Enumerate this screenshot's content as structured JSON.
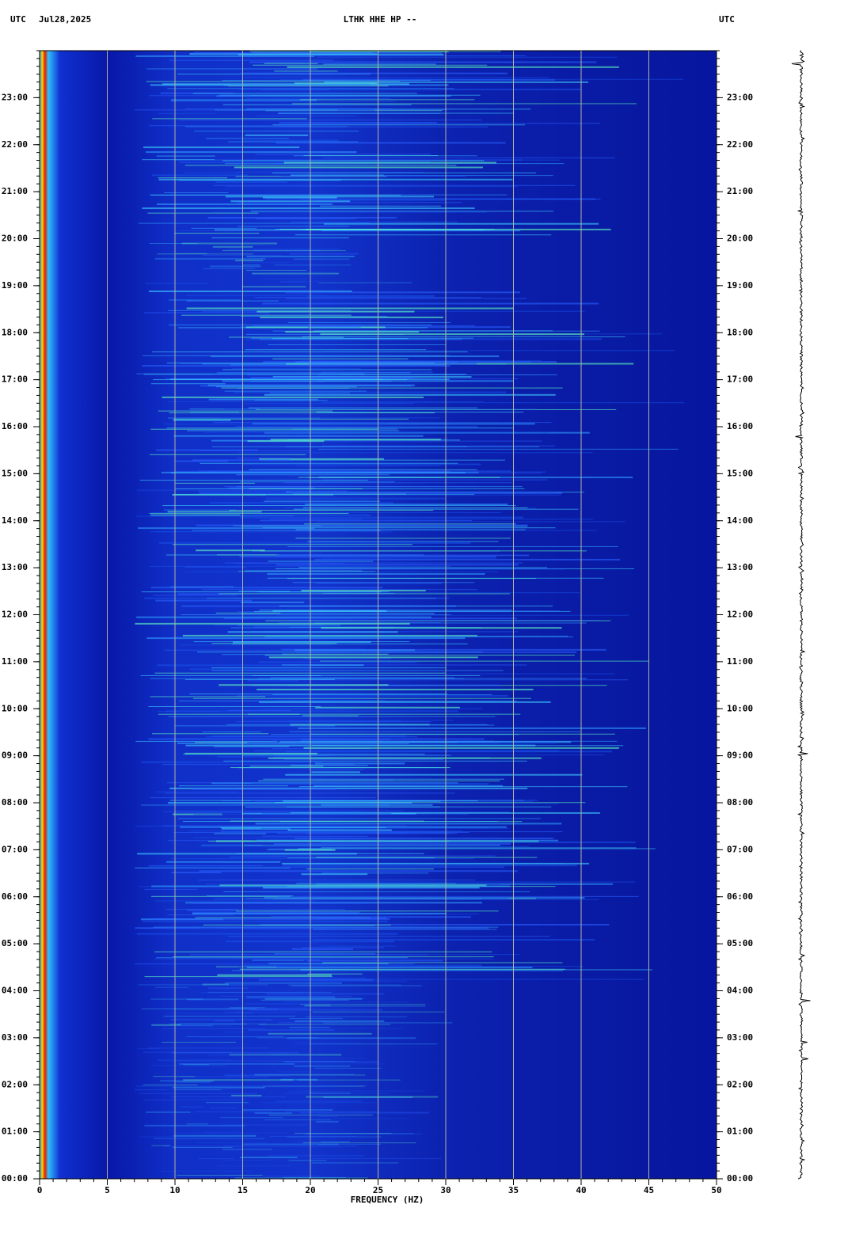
{
  "chart_data": {
    "type": "spectrogram",
    "timezone_left": "UTC",
    "date": "Jul28,2025",
    "title": "LTHK HHE HP --",
    "timezone_right": "UTC",
    "xlabel": "FREQUENCY (HZ)",
    "xlim": [
      0,
      50
    ],
    "xticks": [
      0,
      5,
      10,
      15,
      20,
      25,
      30,
      35,
      40,
      45,
      50
    ],
    "ylim": [
      0,
      24
    ],
    "yticks": [
      {
        "value": 0,
        "label": "00:00"
      },
      {
        "value": 1,
        "label": "01:00"
      },
      {
        "value": 2,
        "label": "02:00"
      },
      {
        "value": 3,
        "label": "03:00"
      },
      {
        "value": 4,
        "label": "04:00"
      },
      {
        "value": 5,
        "label": "05:00"
      },
      {
        "value": 6,
        "label": "06:00"
      },
      {
        "value": 7,
        "label": "07:00"
      },
      {
        "value": 8,
        "label": "08:00"
      },
      {
        "value": 9,
        "label": "09:00"
      },
      {
        "value": 10,
        "label": "10:00"
      },
      {
        "value": 11,
        "label": "11:00"
      },
      {
        "value": 12,
        "label": "12:00"
      },
      {
        "value": 13,
        "label": "13:00"
      },
      {
        "value": 14,
        "label": "14:00"
      },
      {
        "value": 15,
        "label": "15:00"
      },
      {
        "value": 16,
        "label": "16:00"
      },
      {
        "value": 17,
        "label": "17:00"
      },
      {
        "value": 18,
        "label": "18:00"
      },
      {
        "value": 19,
        "label": "19:00"
      },
      {
        "value": 20,
        "label": "20:00"
      },
      {
        "value": 21,
        "label": "21:00"
      },
      {
        "value": 22,
        "label": "22:00"
      },
      {
        "value": 23,
        "label": "23:00"
      }
    ],
    "grid": true,
    "grid_color": "#b4b4a0"
  }
}
